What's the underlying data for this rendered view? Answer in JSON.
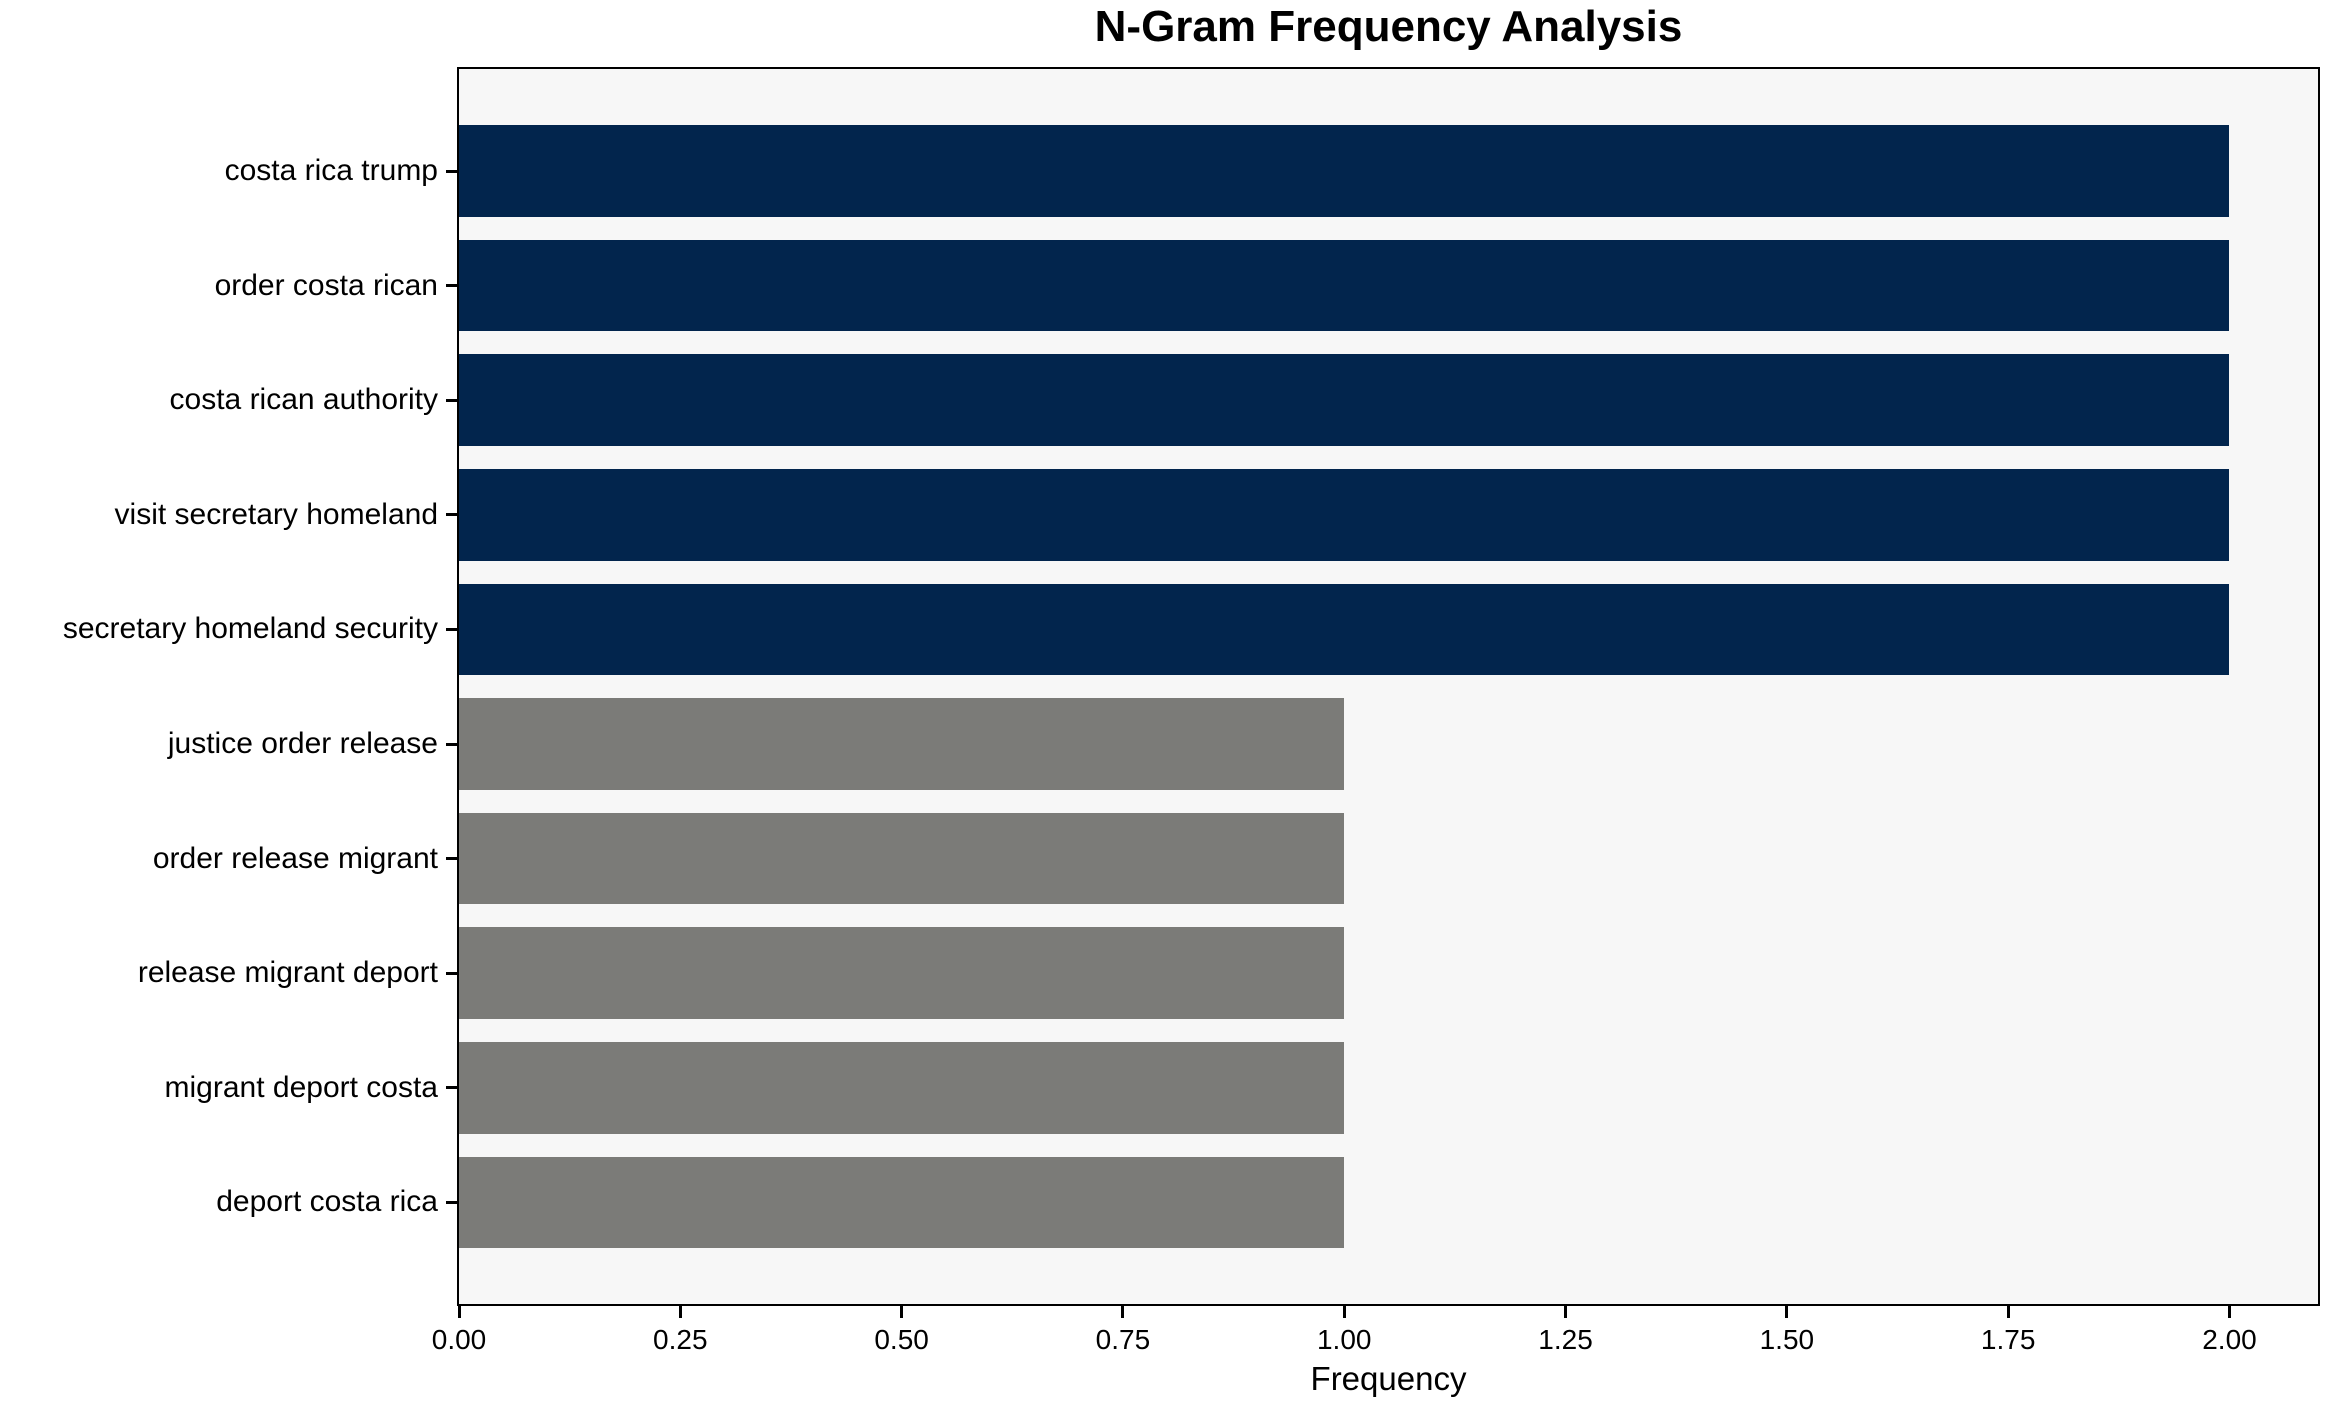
{
  "chart_data": {
    "type": "bar",
    "orientation": "horizontal",
    "title": "N-Gram Frequency Analysis",
    "xlabel": "Frequency",
    "ylabel": "",
    "categories": [
      "costa rica trump",
      "order costa rican",
      "costa rican authority",
      "visit secretary homeland",
      "secretary homeland security",
      "justice order release",
      "order release migrant",
      "release migrant deport",
      "migrant deport costa",
      "deport costa rica"
    ],
    "values": [
      2,
      2,
      2,
      2,
      2,
      1,
      1,
      1,
      1,
      1
    ],
    "bar_colors": [
      "#02254d",
      "#02254d",
      "#02254d",
      "#02254d",
      "#02254d",
      "#7b7b78",
      "#7b7b78",
      "#7b7b78",
      "#7b7b78",
      "#7b7b78"
    ],
    "xlim": [
      0,
      2.1
    ],
    "xtick_labels": [
      "0.00",
      "0.25",
      "0.50",
      "0.75",
      "1.00",
      "1.25",
      "1.50",
      "1.75",
      "2.00"
    ],
    "grid": false,
    "legend": null,
    "colors": {
      "plot_background": "#f7f7f7",
      "figure_background": "#ffffff",
      "spine": "#000000",
      "text": "#000000"
    }
  }
}
